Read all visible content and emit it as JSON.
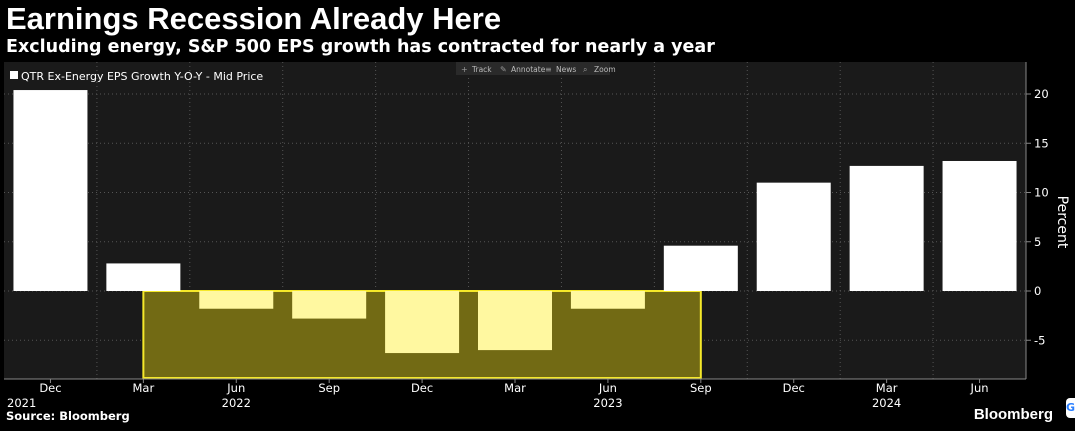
{
  "title": "Earnings Recession Already Here",
  "subtitle": "Excluding energy, S&P 500 EPS growth has contracted for nearly a year",
  "source": "Source: Bloomberg",
  "brand": "Bloomberg",
  "toolbar": [
    {
      "label": "Track",
      "icon": "crosshair-icon"
    },
    {
      "label": "Annotate",
      "icon": "annotate-icon"
    },
    {
      "label": "News",
      "icon": "news-icon"
    },
    {
      "label": "Zoom",
      "icon": "zoom-icon"
    }
  ],
  "colors": {
    "background": "#000000",
    "plot_background": "#1a1a1a",
    "bar": "#ffffff",
    "highlight_bar": "#fff8a0",
    "highlight_box": "#726a14",
    "highlight_border": "#f5e82a"
  },
  "chart_data": {
    "type": "bar",
    "legend": "QTR Ex-Energy EPS Growth Y-O-Y - Mid Price",
    "legend_position": "top-left",
    "ylabel": "Percent",
    "ylim": [
      -9,
      23
    ],
    "yticks": [
      20,
      15,
      10,
      5,
      0,
      -5
    ],
    "ytick_labels": [
      "20",
      "15",
      "10",
      "5",
      "0",
      "-5"
    ],
    "grid": true,
    "categories": [
      "Dec 2021",
      "Mar 2022",
      "Jun 2022",
      "Sep 2022",
      "Dec 2022",
      "Mar 2023",
      "Jun 2023",
      "Sep 2023",
      "Dec 2023",
      "Mar 2024",
      "Jun 2024"
    ],
    "values": [
      20.4,
      2.8,
      -1.8,
      -2.8,
      -6.3,
      -6.0,
      -1.8,
      4.6,
      11.0,
      12.7,
      13.2
    ],
    "highlighted_categories": [
      "Jun 2022",
      "Sep 2022",
      "Dec 2022",
      "Mar 2023",
      "Jun 2023"
    ],
    "highlight_range": [
      "Mar 2022",
      "Sep 2023"
    ],
    "x_ticks": [
      "Dec",
      "Mar",
      "Jun",
      "Sep",
      "Dec",
      "Mar",
      "Jun",
      "Sep",
      "Dec",
      "Mar",
      "Jun"
    ],
    "x_years": [
      {
        "label": "2021",
        "at": "Dec 2021"
      },
      {
        "label": "2022",
        "at": "Jun 2022"
      },
      {
        "label": "2023",
        "at": "Jun 2023"
      },
      {
        "label": "2024",
        "at": "Mar 2024"
      }
    ]
  }
}
